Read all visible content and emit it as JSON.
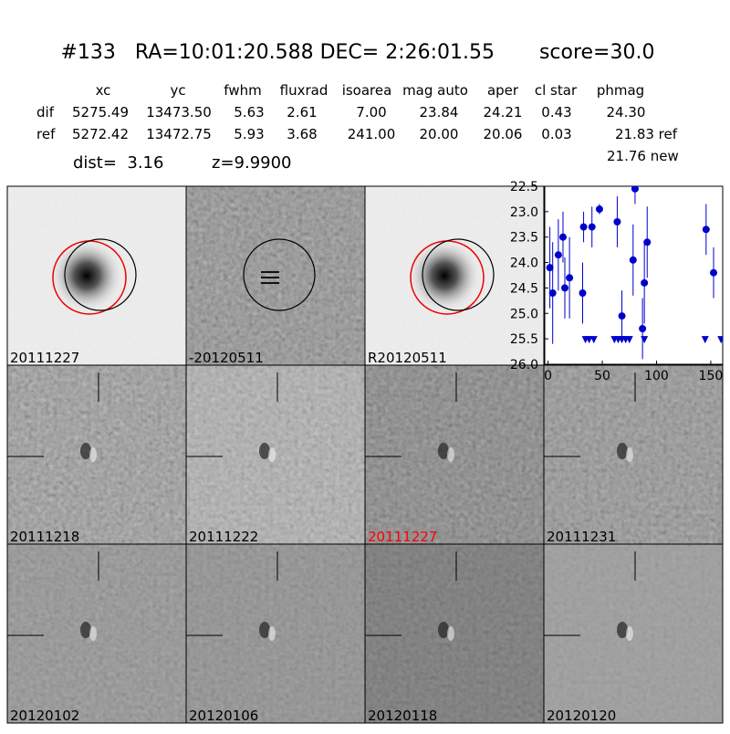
{
  "header": {
    "title": "#133   RA=10:01:20.588 DEC= 2:26:01.55       score=30.0"
  },
  "table": {
    "columns": [
      "xc",
      "yc",
      "fwhm",
      "fluxrad",
      "isoarea",
      "mag auto",
      "aper",
      "cl star",
      "phmag"
    ],
    "rows": [
      [
        "dif",
        "5275.49",
        "13473.50",
        "5.63",
        "2.61",
        "7.00",
        "23.84",
        "24.21",
        "0.43",
        "24.30"
      ],
      [
        "ref",
        "5272.42",
        "13472.75",
        "5.93",
        "3.68",
        "241.00",
        "20.00",
        "20.06",
        "0.03",
        "21.83 ref"
      ]
    ],
    "extra": "21.76 new",
    "dist": "dist=  3.16",
    "z": "z=9.9900"
  },
  "panels": [
    {
      "label": "20111227"
    },
    {
      "label": "-20120511"
    },
    {
      "label": "R20120511"
    },
    {
      "label": "20111218"
    },
    {
      "label": "20111222"
    },
    {
      "label": "20111227",
      "label_color": "#ff0000"
    },
    {
      "label": "20111231"
    },
    {
      "label": "20120102"
    },
    {
      "label": "20120106"
    },
    {
      "label": "20120118"
    },
    {
      "label": "20120120"
    }
  ],
  "chart_data": {
    "type": "errorbar",
    "series": [
      {
        "color": "#0000cc",
        "x": [
          1.7,
          4.3,
          9.5,
          13.8,
          15.5,
          19.8,
          31.9,
          32.8,
          40.5,
          47.4,
          63.8,
          68.1,
          78.4,
          80.2,
          87.1,
          88.8,
          91.4,
          145.7,
          152.6
        ],
        "values": [
          24.1,
          24.6,
          23.85,
          23.5,
          24.5,
          24.3,
          24.6,
          23.3,
          23.3,
          22.95,
          23.2,
          25.05,
          23.95,
          22.55,
          25.3,
          24.4,
          23.6,
          23.35,
          24.2
        ],
        "errors": [
          0.8,
          1.0,
          0.7,
          0.5,
          0.6,
          0.8,
          0.6,
          0.3,
          0.4,
          0.1,
          0.5,
          0.5,
          0.7,
          0.3,
          0.6,
          0.8,
          0.7,
          0.5,
          0.5
        ]
      },
      {
        "color": "#0000cc",
        "marker": "limit",
        "x": [
          34.5,
          37.9,
          42.2,
          61.2,
          64.7,
          68.1,
          71.6,
          75.0,
          88.8,
          144.8,
          159.5
        ],
        "values": [
          25.5,
          25.5,
          25.5,
          25.5,
          25.5,
          25.5,
          25.5,
          25.5,
          25.5,
          25.5,
          25.5
        ]
      }
    ],
    "xlim": [
      -3,
      161
    ],
    "xticks": [
      0,
      50,
      100,
      150
    ],
    "ylim": [
      26,
      22.5
    ],
    "yticks": [
      {
        "value": 26,
        "label": "26.0"
      },
      25.5,
      {
        "value": 25,
        "label": "25.0"
      },
      24.5,
      {
        "value": 24,
        "label": "24.0"
      },
      23.5,
      {
        "value": 23,
        "label": "23.0"
      },
      22.5
    ]
  }
}
